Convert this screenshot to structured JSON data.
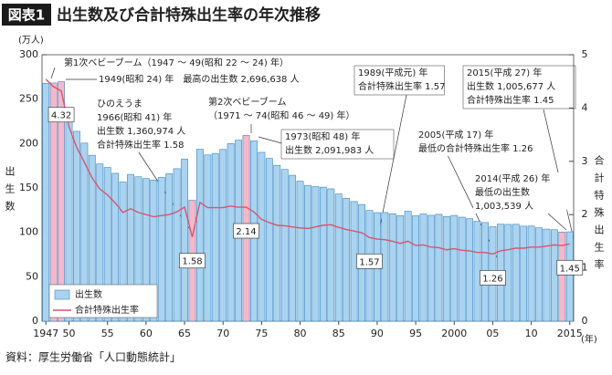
{
  "header": {
    "badge": "図表1",
    "title": "出生数及び合計特殊出生率の年次推移"
  },
  "source": "資料：厚生労働省「人口動態統計」",
  "chart_data": {
    "type": "bar-line",
    "y_unit": "(万人)",
    "y_label": "出生数",
    "y2_label": "合計特殊出生率",
    "x_unit": "(年)",
    "x": [
      1947,
      1948,
      1949,
      1950,
      1951,
      1952,
      1953,
      1954,
      1955,
      1956,
      1957,
      1958,
      1959,
      1960,
      1961,
      1962,
      1963,
      1964,
      1965,
      1966,
      1967,
      1968,
      1969,
      1970,
      1971,
      1972,
      1973,
      1974,
      1975,
      1976,
      1977,
      1978,
      1979,
      1980,
      1981,
      1982,
      1983,
      1984,
      1985,
      1986,
      1987,
      1988,
      1989,
      1990,
      1991,
      1992,
      1993,
      1994,
      1995,
      1996,
      1997,
      1998,
      1999,
      2000,
      2001,
      2002,
      2003,
      2004,
      2005,
      2006,
      2007,
      2008,
      2009,
      2010,
      2011,
      2012,
      2013,
      2014,
      2015
    ],
    "xlim": [
      1946.5,
      2015.5
    ],
    "xticks": [
      {
        "value": 1947,
        "label": "1947"
      },
      {
        "value": 1950,
        "label": "50"
      },
      {
        "value": 1955,
        "label": "55"
      },
      {
        "value": 1960,
        "label": "60"
      },
      {
        "value": 1965,
        "label": "65"
      },
      {
        "value": 1970,
        "label": "70"
      },
      {
        "value": 1975,
        "label": "75"
      },
      {
        "value": 1980,
        "label": "80"
      },
      {
        "value": 1985,
        "label": "85"
      },
      {
        "value": 1990,
        "label": "90"
      },
      {
        "value": 1995,
        "label": "95"
      },
      {
        "value": 2000,
        "label": "2000"
      },
      {
        "value": 2005,
        "label": "05"
      },
      {
        "value": 2010,
        "label": "10"
      },
      {
        "value": 2015,
        "label": "2015"
      }
    ],
    "ylim": [
      0,
      300
    ],
    "yticks": [
      0,
      50,
      100,
      150,
      200,
      250,
      300
    ],
    "y2lim": [
      0,
      5
    ],
    "y2ticks": [
      0,
      1,
      2,
      3,
      4,
      5
    ],
    "series": [
      {
        "name": "出生数",
        "color": "#a9d3ef",
        "colors": [
          "#a9d3ef",
          "#f5b8c8",
          "#f5b8c8",
          "#a9d3ef",
          "#a9d3ef",
          "#a9d3ef",
          "#a9d3ef",
          "#a9d3ef",
          "#a9d3ef",
          "#a9d3ef",
          "#a9d3ef",
          "#a9d3ef",
          "#a9d3ef",
          "#a9d3ef",
          "#a9d3ef",
          "#a9d3ef",
          "#a9d3ef",
          "#a9d3ef",
          "#a9d3ef",
          "#f5b8c8",
          "#a9d3ef",
          "#a9d3ef",
          "#a9d3ef",
          "#a9d3ef",
          "#a9d3ef",
          "#a9d3ef",
          "#f5b8c8",
          "#a9d3ef",
          "#a9d3ef",
          "#a9d3ef",
          "#a9d3ef",
          "#a9d3ef",
          "#a9d3ef",
          "#a9d3ef",
          "#a9d3ef",
          "#a9d3ef",
          "#a9d3ef",
          "#a9d3ef",
          "#a9d3ef",
          "#a9d3ef",
          "#a9d3ef",
          "#a9d3ef",
          "#a9d3ef",
          "#a9d3ef",
          "#a9d3ef",
          "#a9d3ef",
          "#a9d3ef",
          "#a9d3ef",
          "#a9d3ef",
          "#a9d3ef",
          "#a9d3ef",
          "#a9d3ef",
          "#a9d3ef",
          "#a9d3ef",
          "#a9d3ef",
          "#a9d3ef",
          "#a9d3ef",
          "#a9d3ef",
          "#a9d3ef",
          "#a9d3ef",
          "#a9d3ef",
          "#a9d3ef",
          "#a9d3ef",
          "#a9d3ef",
          "#a9d3ef",
          "#a9d3ef",
          "#a9d3ef",
          "#f5b8c8",
          "#a9d3ef"
        ],
        "values": [
          267.9,
          268.2,
          269.7,
          233.8,
          213.8,
          200.5,
          186.8,
          177.0,
          173.1,
          166.5,
          156.7,
          165.3,
          162.6,
          160.6,
          158.9,
          161.9,
          166.0,
          171.7,
          182.4,
          136.1,
          193.6,
          187.2,
          188.9,
          193.4,
          200.1,
          203.9,
          209.2,
          203.0,
          190.1,
          183.3,
          175.5,
          170.9,
          164.3,
          157.7,
          152.9,
          151.5,
          150.9,
          149.0,
          143.2,
          138.3,
          134.7,
          131.4,
          124.7,
          122.2,
          122.3,
          120.9,
          118.8,
          123.8,
          118.7,
          120.7,
          119.2,
          120.3,
          117.8,
          119.1,
          117.1,
          115.4,
          112.4,
          111.1,
          106.3,
          109.3,
          109.0,
          109.1,
          107.0,
          107.1,
          105.1,
          103.7,
          103.0,
          100.4,
          100.6
        ]
      },
      {
        "name": "合計特殊出生率",
        "color": "#d9546f",
        "axis": "y2",
        "values": [
          4.54,
          4.4,
          4.32,
          3.65,
          3.26,
          2.98,
          2.69,
          2.48,
          2.37,
          2.22,
          2.04,
          2.11,
          2.04,
          2.0,
          1.96,
          1.98,
          2.0,
          2.05,
          2.14,
          1.58,
          2.23,
          2.13,
          2.13,
          2.13,
          2.16,
          2.14,
          2.14,
          2.05,
          1.91,
          1.85,
          1.8,
          1.79,
          1.77,
          1.75,
          1.74,
          1.77,
          1.8,
          1.81,
          1.76,
          1.72,
          1.69,
          1.66,
          1.57,
          1.54,
          1.53,
          1.5,
          1.46,
          1.5,
          1.42,
          1.43,
          1.39,
          1.38,
          1.34,
          1.36,
          1.33,
          1.32,
          1.29,
          1.29,
          1.26,
          1.32,
          1.34,
          1.37,
          1.37,
          1.39,
          1.39,
          1.41,
          1.43,
          1.42,
          1.45
        ],
        "value_labels": [
          null,
          null,
          "4.32",
          null,
          null,
          null,
          null,
          null,
          null,
          null,
          null,
          null,
          null,
          null,
          null,
          null,
          null,
          null,
          null,
          "1.58",
          null,
          null,
          null,
          null,
          null,
          null,
          "2.14",
          null,
          null,
          null,
          null,
          null,
          null,
          null,
          null,
          null,
          null,
          null,
          null,
          null,
          null,
          null,
          "1.57",
          null,
          null,
          null,
          null,
          null,
          null,
          null,
          null,
          null,
          null,
          null,
          null,
          null,
          null,
          null,
          "1.26",
          null,
          null,
          null,
          null,
          null,
          null,
          null,
          null,
          null,
          "1.45"
        ]
      }
    ],
    "annotations": [
      [
        "第1次ベビーブーム（1947 ～ 49(昭和 22 ～ 24) 年）"
      ],
      [
        "1949(昭和 24) 年　最高の出生数 2,696,638 人"
      ],
      [
        "ひのえうま",
        "1966(昭和 41) 年",
        "出生数 1,360,974 人",
        "合計特殊出生率 1.58"
      ],
      [
        "第2次ベビーブーム",
        "（1971 ～ 74(昭和 46 ～ 49) 年）"
      ],
      [
        "1973(昭和 48) 年",
        "出生数 2,091,983 人"
      ],
      [
        "1989(平成元) 年",
        "合計特殊出生率 1.57"
      ],
      [
        "2005(平成 17) 年",
        "最低の合計特殊出生率 1.26"
      ],
      [
        "2015(平成 27) 年",
        "出生数 1,005,677 人",
        "合計特殊出生率 1.45"
      ],
      [
        "2014(平成 26) 年",
        "最低の出生数",
        "1,003,539 人"
      ]
    ]
  }
}
